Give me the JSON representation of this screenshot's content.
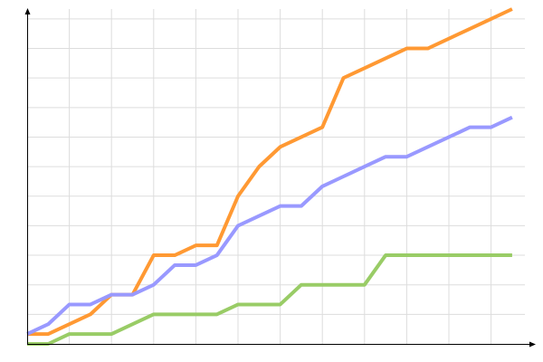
{
  "chart_data": {
    "type": "line",
    "title": "",
    "xlabel": "",
    "ylabel": "",
    "x": [
      0,
      1,
      2,
      3,
      4,
      5,
      6,
      7,
      8,
      9,
      10,
      11,
      12,
      13,
      14,
      15,
      16,
      17,
      18,
      19,
      20,
      21,
      22,
      23
    ],
    "xlim": [
      0,
      24.3
    ],
    "ylim": [
      0,
      34
    ],
    "grid": true,
    "x_grid_step": 2,
    "y_grid_step": 3,
    "tick_labels_shown": false,
    "legend": "none",
    "series": [
      {
        "color": "#ff9933",
        "values": [
          1,
          1,
          2,
          3,
          5,
          5,
          9,
          9,
          10,
          10,
          15,
          18,
          20,
          21,
          22,
          27,
          28,
          29,
          30,
          30,
          31,
          32,
          33,
          34
        ]
      },
      {
        "color": "#9999ff",
        "values": [
          1,
          2,
          4,
          4,
          5,
          5,
          6,
          8,
          8,
          9,
          12,
          13,
          14,
          14,
          16,
          17,
          18,
          19,
          19,
          20,
          21,
          22,
          22,
          23
        ]
      },
      {
        "color": "#99cc66",
        "values": [
          0,
          0,
          1,
          1,
          1,
          2,
          3,
          3,
          3,
          3,
          4,
          4,
          4,
          6,
          6,
          6,
          6,
          9,
          9,
          9,
          9,
          9,
          9,
          9
        ]
      }
    ]
  }
}
